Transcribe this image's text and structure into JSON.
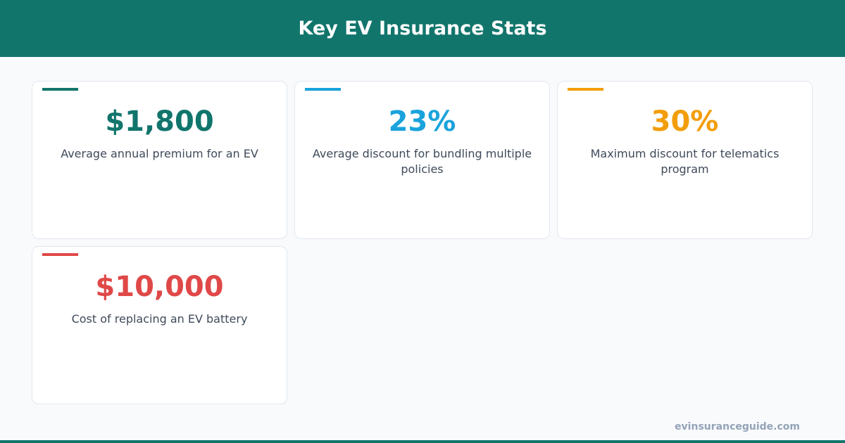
{
  "header": {
    "title": "Key EV Insurance Stats"
  },
  "cards": [
    {
      "value": "$1,800",
      "label": "Average annual premium for an EV",
      "color": "#11756c"
    },
    {
      "value": "23%",
      "label": "Average discount for bundling multiple policies",
      "color": "#1aa3dc"
    },
    {
      "value": "30%",
      "label": "Maximum discount for telematics program",
      "color": "#f29e0c"
    },
    {
      "value": "$10,000",
      "label": "Cost of replacing an EV battery",
      "color": "#e04848"
    }
  ],
  "footer": {
    "site": "evinsuranceguide.com"
  }
}
